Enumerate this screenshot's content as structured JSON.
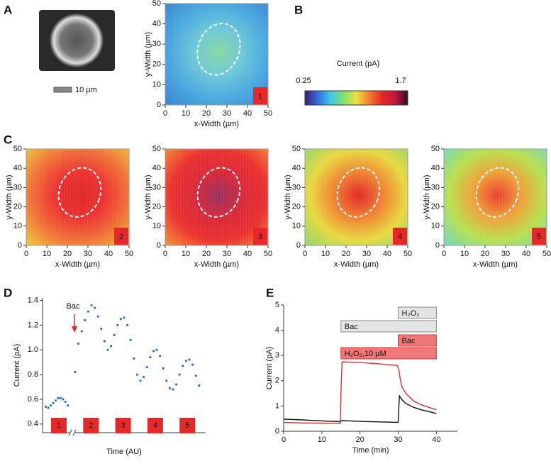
{
  "panel_labels": [
    "A",
    "B",
    "C",
    "D",
    "E"
  ],
  "image": {
    "scale_bar": "10 µm"
  },
  "colorbar": {
    "label": "Current (pA)",
    "min_label": "0.25",
    "max_label": "1.7",
    "colors": [
      "#3b1a6e",
      "#2f6fe0",
      "#3fc8e8",
      "#7fe070",
      "#f0e040",
      "#f08030",
      "#e82828",
      "#c01840",
      "#3a0a20"
    ]
  },
  "chart_data": [
    {
      "type": "heatmap",
      "xlabel": "x-Width (µm)",
      "ylabel": "y-Width (µm)",
      "xlim": [
        0,
        50
      ],
      "ylim": [
        0,
        50
      ],
      "xticks": [
        0,
        10,
        20,
        30,
        40,
        50
      ],
      "yticks": [
        0,
        10,
        20,
        30,
        40,
        50
      ],
      "badge": "1",
      "colors": [
        "#88d8a0",
        "#6cc8d8",
        "#49a8e0",
        "#3a86d0"
      ]
    },
    {
      "type": "heatmap",
      "xlabel": "x-Width (µm)",
      "ylabel": "y-Width (µm)",
      "xlim": [
        0,
        50
      ],
      "ylim": [
        0,
        50
      ],
      "xticks": [
        0,
        10,
        20,
        30,
        40,
        50
      ],
      "yticks": [
        0,
        10,
        20,
        30,
        40,
        50
      ],
      "badge": "2",
      "colors": [
        "#e02828",
        "#ec3030",
        "#f07038",
        "#eec038"
      ]
    },
    {
      "type": "heatmap",
      "xlabel": "x-Width (µm)",
      "ylabel": "y-Width (µm)",
      "xlim": [
        0,
        50
      ],
      "ylim": [
        0,
        50
      ],
      "xticks": [
        0,
        10,
        20,
        30,
        40,
        50
      ],
      "yticks": [
        0,
        10,
        20,
        30,
        40,
        50
      ],
      "badge": "3",
      "colors": [
        "#983060",
        "#d82838",
        "#ec3030",
        "#f08838"
      ]
    },
    {
      "type": "heatmap",
      "xlabel": "x-Width (µm)",
      "ylabel": "y-Width (µm)",
      "xlim": [
        0,
        50
      ],
      "ylim": [
        0,
        50
      ],
      "xticks": [
        0,
        10,
        20,
        30,
        40,
        50
      ],
      "yticks": [
        0,
        10,
        20,
        30,
        40,
        50
      ],
      "badge": "4",
      "colors": [
        "#e02828",
        "#f08030",
        "#e8d840",
        "#98d868"
      ]
    },
    {
      "type": "heatmap",
      "xlabel": "x-Width (µm)",
      "ylabel": "y-Width (µm)",
      "xlim": [
        0,
        50
      ],
      "ylim": [
        0,
        50
      ],
      "xticks": [
        0,
        10,
        20,
        30,
        40,
        50
      ],
      "yticks": [
        0,
        10,
        20,
        30,
        40,
        50
      ],
      "badge": "5",
      "colors": [
        "#e84030",
        "#f0a038",
        "#b8e050",
        "#78d8b0"
      ]
    },
    {
      "type": "scatter",
      "xlabel": "Time (AU)",
      "ylabel": "Current (pA)",
      "xlim": [
        0,
        100
      ],
      "ylim": [
        0.33,
        1.42
      ],
      "yticks": [
        0.4,
        0.6,
        0.8,
        {
          "value": 1,
          "label": "1.0"
        },
        1.2,
        1.4
      ],
      "color": "#2f6fd0",
      "annotation": "Bac",
      "annotation_color": "#e03030",
      "badges": [
        "1",
        "2",
        "3",
        "4",
        "5"
      ],
      "x": [
        2,
        3.5,
        5,
        6.5,
        8,
        9.5,
        11,
        12.5,
        14,
        15.5,
        20,
        22,
        24,
        26,
        28,
        30,
        32,
        34,
        36,
        38,
        40,
        42,
        44,
        46,
        48,
        50,
        52,
        54,
        56,
        58,
        60,
        62,
        64,
        66,
        68,
        70,
        72,
        74,
        76,
        78,
        80,
        82,
        84,
        86,
        88,
        90,
        92,
        94,
        96
      ],
      "values": [
        0.54,
        0.53,
        0.55,
        0.57,
        0.59,
        0.61,
        0.61,
        0.6,
        0.58,
        0.55,
        0.82,
        1.05,
        1.15,
        1.24,
        1.31,
        1.36,
        1.34,
        1.27,
        1.17,
        1.07,
        1.0,
        1.03,
        1.12,
        1.2,
        1.25,
        1.26,
        1.2,
        1.08,
        0.93,
        0.8,
        0.75,
        0.78,
        0.86,
        0.94,
        0.99,
        1.0,
        0.95,
        0.85,
        0.75,
        0.69,
        0.68,
        0.72,
        0.8,
        0.87,
        0.91,
        0.92,
        0.88,
        0.79,
        0.71
      ]
    },
    {
      "type": "line",
      "xlabel": "Time (min)",
      "ylabel": "Current (pA)",
      "xlim": [
        0,
        45.5
      ],
      "ylim": [
        0,
        5
      ],
      "xticks": [
        0,
        10,
        20,
        30,
        40
      ],
      "yticks": [
        0,
        1,
        2,
        3,
        4,
        5
      ],
      "series": [
        {
          "color": "#111111",
          "x": [
            0,
            5,
            10,
            14.8,
            15.2,
            20,
            25,
            30,
            30.3,
            31,
            32,
            34,
            36,
            38,
            40
          ],
          "values": [
            0.48,
            0.45,
            0.41,
            0.38,
            0.42,
            0.39,
            0.37,
            0.35,
            1.4,
            1.25,
            1.1,
            0.95,
            0.85,
            0.78,
            0.7
          ]
        },
        {
          "color": "#e03030",
          "x": [
            0,
            5,
            10,
            14.8,
            15.1,
            15.3,
            20,
            25,
            29.8,
            30.2,
            30.6,
            31,
            32,
            34,
            36,
            38,
            40
          ],
          "values": [
            0.35,
            0.33,
            0.32,
            0.3,
            2.0,
            2.75,
            2.72,
            2.67,
            2.6,
            2.4,
            2.0,
            1.75,
            1.5,
            1.2,
            1.05,
            0.95,
            0.85
          ]
        }
      ],
      "annotations": [
        {
          "text": "H₂O₂",
          "color": "#888888",
          "fill": "#e4e4e4",
          "text_color": "#111111",
          "x": [
            30,
            40
          ]
        },
        {
          "text": "Bac",
          "color": "#888888",
          "fill": "#e4e4e4",
          "text_color": "#111111",
          "x": [
            15,
            40
          ]
        },
        {
          "text": "Bac",
          "color": "#e03030",
          "fill": "#f07878",
          "text_color": "#ffffff",
          "x": [
            30,
            40
          ]
        },
        {
          "text": "H₂O₂,10 µM",
          "color": "#e03030",
          "fill": "#f07878",
          "text_color": "#ffffff",
          "x": [
            15,
            40
          ]
        }
      ]
    }
  ]
}
